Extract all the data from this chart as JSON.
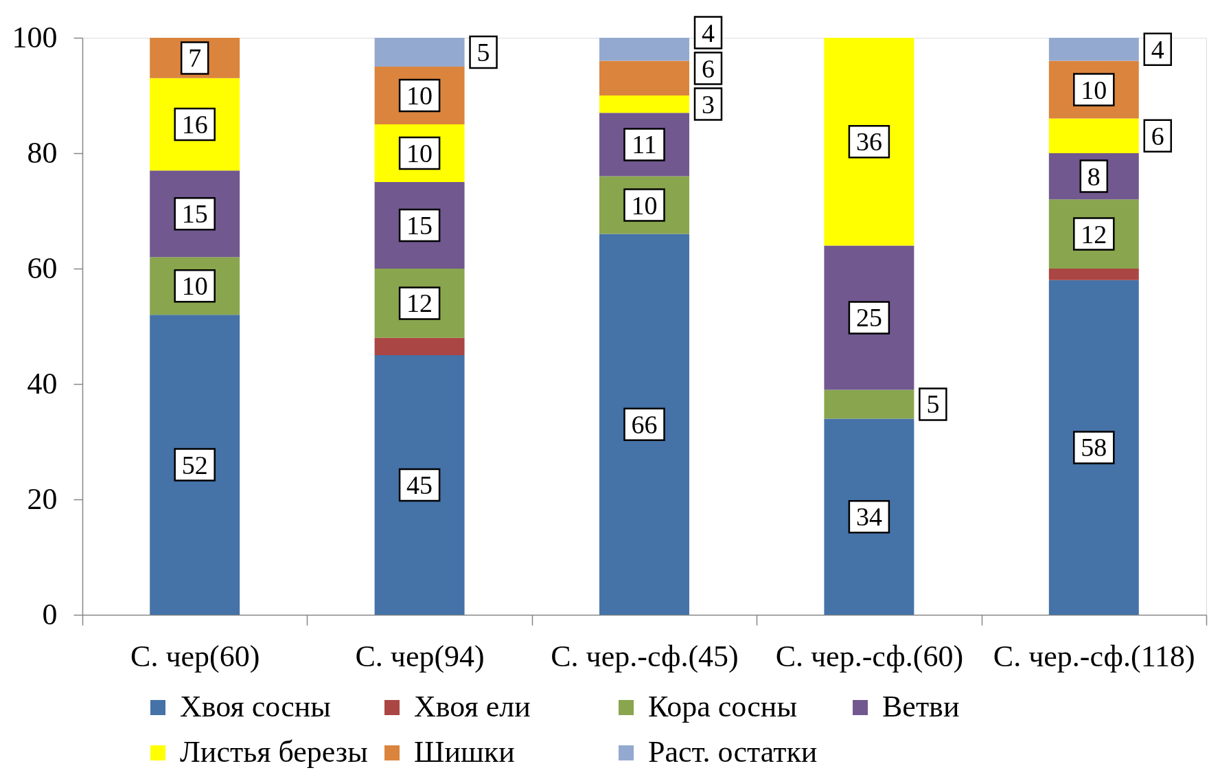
{
  "chart_data": {
    "type": "bar",
    "stacked": true,
    "categories": [
      "С. чер(60)",
      "С. чер(94)",
      "С. чер.-сф.(45)",
      "С. чер.-сф.(60)",
      "С. чер.-сф.(118)"
    ],
    "series": [
      {
        "name": "Хвоя сосны",
        "color": "#4572a7",
        "values": [
          52,
          45,
          66,
          34,
          58
        ],
        "value_labels": [
          "52",
          "45",
          "66",
          "34",
          "58"
        ]
      },
      {
        "name": "Хвоя ели",
        "color": "#aa4643",
        "values": [
          null,
          3,
          null,
          null,
          2
        ],
        "value_labels": [
          null,
          null,
          null,
          null,
          null
        ]
      },
      {
        "name": "Кора сосны",
        "color": "#89a54e",
        "values": [
          10,
          12,
          10,
          5,
          12
        ],
        "value_labels": [
          "10",
          "12",
          "10",
          "5",
          "12"
        ]
      },
      {
        "name": "Ветви",
        "color": "#71588f",
        "values": [
          15,
          15,
          11,
          25,
          8
        ],
        "value_labels": [
          "15",
          "15",
          "11",
          "25",
          "8"
        ]
      },
      {
        "name": "Листья березы",
        "color": "#ffff00",
        "values": [
          16,
          10,
          3,
          36,
          6
        ],
        "value_labels": [
          "16",
          "10",
          "3",
          "36",
          "6"
        ]
      },
      {
        "name": "Шишки",
        "color": "#db843d",
        "values": [
          7,
          10,
          6,
          null,
          10
        ],
        "value_labels": [
          "7",
          "10",
          "6",
          null,
          "10"
        ]
      },
      {
        "name": "Раст. остатки",
        "color": "#93a9cf",
        "values": [
          null,
          5,
          4,
          null,
          4
        ],
        "value_labels": [
          null,
          "5",
          "4",
          null,
          "4"
        ]
      }
    ],
    "ylim": [
      0,
      100
    ],
    "yticks": [
      0,
      20,
      40,
      60,
      80,
      100
    ],
    "grid": false,
    "legend": "bottom"
  }
}
